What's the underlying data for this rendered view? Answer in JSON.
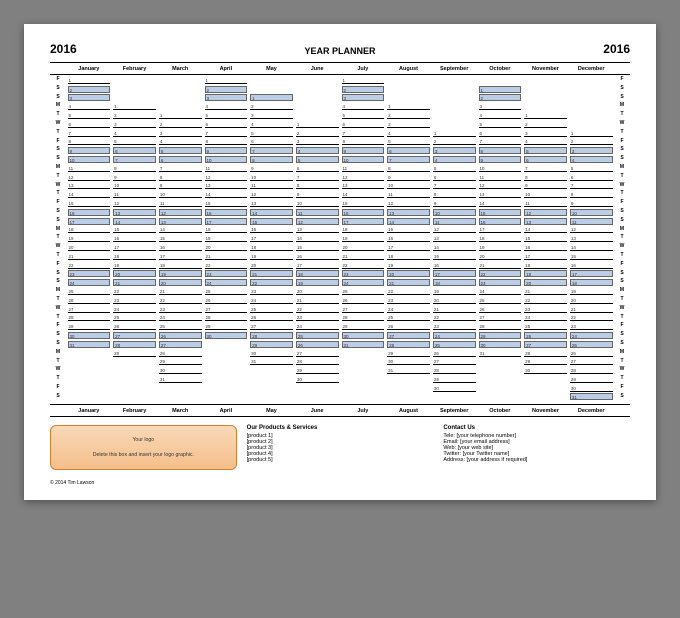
{
  "year": "2016",
  "title": "YEAR PLANNER",
  "months": [
    "January",
    "February",
    "March",
    "April",
    "May",
    "June",
    "July",
    "August",
    "September",
    "October",
    "November",
    "December"
  ],
  "dow_labels": [
    "F",
    "S",
    "S",
    "M",
    "T",
    "W",
    "T",
    "F",
    "S",
    "S",
    "M",
    "T",
    "W",
    "T",
    "F",
    "S",
    "S",
    "M",
    "T",
    "W",
    "T",
    "F",
    "S",
    "S",
    "M",
    "T",
    "W",
    "T",
    "F",
    "S",
    "S",
    "M",
    "T",
    "W",
    "T",
    "F",
    "S"
  ],
  "weekend_pattern": [
    false,
    true,
    true,
    false,
    false,
    false,
    false,
    false,
    true,
    true,
    false,
    false,
    false,
    false,
    false,
    true,
    true,
    false,
    false,
    false,
    false,
    false,
    true,
    true,
    false,
    false,
    false,
    false,
    false,
    true,
    true,
    false,
    false,
    false,
    false,
    false,
    true
  ],
  "month_offsets": [
    0,
    3,
    4,
    0,
    2,
    5,
    0,
    3,
    6,
    1,
    4,
    6
  ],
  "month_days": [
    31,
    29,
    31,
    30,
    31,
    30,
    31,
    31,
    30,
    31,
    30,
    31
  ],
  "colors": {
    "weekend_fill": "#bccde6",
    "page_bg": "#ffffff",
    "outer_bg": "#808080",
    "logo_grad_top": "#f9d9b8",
    "logo_grad_bot": "#f4bf8a"
  },
  "fonts": {
    "family": "Arial",
    "title_pt": 9,
    "year_pt": 12,
    "month_pt": 5.5,
    "cell_pt": 4.5
  },
  "logo_box": {
    "line1": "Your logo",
    "line2": "Delete this box and insert your logo graphic."
  },
  "products": {
    "heading": "Our Products & Services",
    "items": [
      "[product 1]",
      "[product 2]",
      "[product 3]",
      "[product 4]",
      "[product 5]"
    ]
  },
  "contact": {
    "heading": "Contact Us",
    "items": [
      "Tele: [your telephone number]",
      "Email: [your email address]",
      "Web: [your web site]",
      "Twitter: [your Twitter name]",
      "Address: [your address if required]"
    ]
  },
  "copyright": "© 2014 Tim Lawson"
}
